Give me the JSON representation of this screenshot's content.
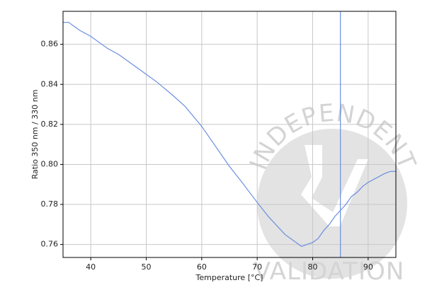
{
  "chart_data": {
    "type": "line",
    "x_label": "Temperature [°C]",
    "y_label": "Ratio 350 nm / 330 nm",
    "x": [
      35,
      36,
      37,
      38,
      40,
      42,
      43,
      45,
      47,
      50,
      52,
      55,
      57,
      60,
      62,
      65,
      67,
      70,
      72,
      75,
      77,
      78,
      79,
      80,
      81,
      82,
      83,
      84,
      85,
      86,
      87,
      88,
      89,
      90,
      92,
      93,
      94,
      95
    ],
    "series": [
      {
        "color": "#6a8ee0",
        "values": [
          0.871,
          0.871,
          0.869,
          0.867,
          0.864,
          0.86,
          0.858,
          0.855,
          0.851,
          0.845,
          0.841,
          0.834,
          0.829,
          0.819,
          0.811,
          0.799,
          0.792,
          0.781,
          0.774,
          0.765,
          0.761,
          0.759,
          0.76,
          0.761,
          0.763,
          0.767,
          0.77,
          0.774,
          0.777,
          0.78,
          0.784,
          0.786,
          0.789,
          0.791,
          0.794,
          0.7955,
          0.7965,
          0.7965
        ]
      }
    ],
    "xlim": [
      35,
      95
    ],
    "ylim": [
      0.7535,
      0.8765
    ],
    "xticks": [
      40,
      50,
      60,
      70,
      80,
      90
    ],
    "yticks": [
      0.76,
      0.78,
      {
        "value": 0.8,
        "label": "0.80"
      },
      0.82,
      0.84,
      0.86
    ],
    "grid": true,
    "vline": {
      "x": 85,
      "color": "#6a8ee0"
    },
    "watermark": [
      "INDEPENDENT",
      "VALIDATION"
    ]
  }
}
